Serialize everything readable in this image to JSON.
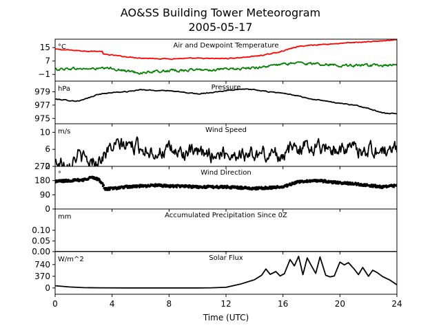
{
  "figure": {
    "title_line1": "AO&SS Building Tower Meteorogram",
    "title_line2": "2005-05-17",
    "xlabel": "Time (UTC)"
  },
  "chart_data": [
    {
      "type": "line",
      "title": "Air and Dewpoint Temperature",
      "unit": "°C",
      "ylim": [
        -5,
        20
      ],
      "yticks": [
        -1,
        7,
        15
      ],
      "xlim": [
        0,
        24
      ],
      "xticks": [
        0,
        4,
        8,
        12,
        16,
        20,
        24
      ],
      "grid": false,
      "series": [
        {
          "color": "#ff0000",
          "noise": 0.2,
          "points": [
            [
              0,
              14
            ],
            [
              1,
              13.5
            ],
            [
              2,
              13
            ],
            [
              3.3,
              12.7
            ],
            [
              3.4,
              11
            ],
            [
              4,
              10.5
            ],
            [
              5,
              9.5
            ],
            [
              6,
              8.8
            ],
            [
              7,
              8.5
            ],
            [
              8,
              8.3
            ],
            [
              9,
              8.5
            ],
            [
              10,
              8.6
            ],
            [
              11,
              8.4
            ],
            [
              12,
              8.5
            ],
            [
              13,
              9
            ],
            [
              14,
              9.8
            ],
            [
              15,
              11
            ],
            [
              16,
              13
            ],
            [
              17,
              15.5
            ],
            [
              18,
              16.5
            ],
            [
              19,
              17
            ],
            [
              20,
              17.5
            ],
            [
              21,
              18
            ],
            [
              22,
              18.5
            ],
            [
              23,
              19
            ],
            [
              24,
              19.5
            ]
          ]
        },
        {
          "color": "#008000",
          "noise": 0.6,
          "points": [
            [
              0,
              2
            ],
            [
              1,
              2.5
            ],
            [
              2,
              2.3
            ],
            [
              3,
              2.4
            ],
            [
              4,
              2.6
            ],
            [
              5,
              1
            ],
            [
              6,
              0
            ],
            [
              7,
              0.5
            ],
            [
              8,
              1.2
            ],
            [
              9,
              1.5
            ],
            [
              10,
              1.7
            ],
            [
              11,
              1.8
            ],
            [
              12,
              2
            ],
            [
              13,
              2.3
            ],
            [
              14,
              3
            ],
            [
              15,
              4
            ],
            [
              16,
              5
            ],
            [
              17,
              6
            ],
            [
              18,
              5.3
            ],
            [
              19,
              5
            ],
            [
              20,
              4.5
            ],
            [
              21,
              4.3
            ],
            [
              22,
              4.2
            ],
            [
              23,
              4.3
            ],
            [
              24,
              4.3
            ]
          ]
        }
      ]
    },
    {
      "type": "line",
      "title": "Pressure",
      "unit": "hPa",
      "ylim": [
        974.2,
        980.6
      ],
      "yticks": [
        975,
        977,
        979
      ],
      "xlim": [
        0,
        24
      ],
      "grid": false,
      "series": [
        {
          "color": "#000000",
          "noise": 0.05,
          "points": [
            [
              0,
              977.9
            ],
            [
              1,
              977.7
            ],
            [
              1.5,
              977.6
            ],
            [
              2,
              977.8
            ],
            [
              3,
              978.6
            ],
            [
              4,
              978.9
            ],
            [
              5,
              979.0
            ],
            [
              6,
              979.3
            ],
            [
              7,
              979.2
            ],
            [
              8,
              979.2
            ],
            [
              9,
              978.9
            ],
            [
              10,
              978.7
            ],
            [
              11,
              978.9
            ],
            [
              12,
              979.2
            ],
            [
              13,
              979.4
            ],
            [
              14,
              979.3
            ],
            [
              15,
              979.0
            ],
            [
              16,
              978.8
            ],
            [
              17,
              978.4
            ],
            [
              18,
              977.9
            ],
            [
              19,
              977.6
            ],
            [
              20,
              977.3
            ],
            [
              21,
              977.0
            ],
            [
              22,
              976.5
            ],
            [
              23,
              975.8
            ],
            [
              24,
              975.7
            ]
          ]
        }
      ]
    },
    {
      "type": "line",
      "title": "Wind Speed",
      "unit": "m/s",
      "ylim": [
        2,
        12
      ],
      "yticks": [
        2,
        6,
        10
      ],
      "xlim": [
        0,
        24
      ],
      "grid": false,
      "series": [
        {
          "color": "#000000",
          "noise": 1.4,
          "points": [
            [
              0,
              2.8
            ],
            [
              1,
              3.3
            ],
            [
              1.6,
              4.8
            ],
            [
              2,
              3.5
            ],
            [
              2.5,
              3
            ],
            [
              3,
              3.5
            ],
            [
              3.5,
              5
            ],
            [
              4,
              6.5
            ],
            [
              5,
              7
            ],
            [
              6,
              6.5
            ],
            [
              7,
              5.5
            ],
            [
              8,
              5.5
            ],
            [
              9,
              5.2
            ],
            [
              10,
              4.8
            ],
            [
              11,
              5
            ],
            [
              12,
              5
            ],
            [
              13,
              5
            ],
            [
              14,
              4.7
            ],
            [
              15,
              4.8
            ],
            [
              16,
              5
            ],
            [
              17,
              6.5
            ],
            [
              18,
              6.8
            ],
            [
              19,
              6.5
            ],
            [
              20,
              6.3
            ],
            [
              21,
              6
            ],
            [
              22,
              6
            ],
            [
              23,
              5.5
            ],
            [
              24,
              6
            ]
          ]
        }
      ]
    },
    {
      "type": "scatter",
      "title": "Wind Direction",
      "unit": "°",
      "ylim": [
        0,
        270
      ],
      "yticks": [
        0,
        90,
        180,
        270
      ],
      "xlim": [
        0,
        24
      ],
      "grid": false,
      "series": [
        {
          "color": "#000000",
          "noise": 8,
          "points": [
            [
              0,
              175
            ],
            [
              1,
              180
            ],
            [
              2,
              185
            ],
            [
              2.5,
              200
            ],
            [
              3,
              190
            ],
            [
              3.3,
              165
            ],
            [
              3.5,
              125
            ],
            [
              4,
              130
            ],
            [
              5,
              140
            ],
            [
              6,
              145
            ],
            [
              7,
              150
            ],
            [
              8,
              145
            ],
            [
              9,
              145
            ],
            [
              10,
              140
            ],
            [
              11,
              140
            ],
            [
              12,
              140
            ],
            [
              13,
              135
            ],
            [
              14,
              130
            ],
            [
              15,
              135
            ],
            [
              16,
              140
            ],
            [
              17,
              170
            ],
            [
              18,
              180
            ],
            [
              19,
              175
            ],
            [
              20,
              165
            ],
            [
              21,
              160
            ],
            [
              22,
              150
            ],
            [
              23,
              140
            ],
            [
              24,
              148
            ]
          ]
        }
      ]
    },
    {
      "type": "line",
      "title": "Accumulated Precipitation Since 0Z",
      "unit": "mm",
      "ylim": [
        0,
        0.2
      ],
      "yticks": [
        0.0,
        0.05,
        0.1
      ],
      "ytick_labels": [
        "0.00",
        "0.05",
        "0.10"
      ],
      "xlim": [
        0,
        24
      ],
      "grid": false,
      "series": [
        {
          "color": "#000000",
          "noise": 0,
          "points": [
            [
              0,
              0
            ],
            [
              24,
              0
            ]
          ]
        }
      ]
    },
    {
      "type": "line",
      "title": "Solar Flux",
      "unit": "W/m^2",
      "ylim": [
        -200,
        1150
      ],
      "yticks": [
        0,
        370,
        740
      ],
      "xlim": [
        0,
        24
      ],
      "grid": false,
      "series": [
        {
          "color": "#000000",
          "noise": 0,
          "points": [
            [
              0,
              70
            ],
            [
              1,
              30
            ],
            [
              2,
              10
            ],
            [
              3,
              5
            ],
            [
              5,
              0
            ],
            [
              8,
              0
            ],
            [
              10,
              0
            ],
            [
              11,
              5
            ],
            [
              12,
              20
            ],
            [
              13,
              120
            ],
            [
              14,
              260
            ],
            [
              14.5,
              400
            ],
            [
              14.8,
              600
            ],
            [
              15.1,
              430
            ],
            [
              15.5,
              520
            ],
            [
              15.8,
              380
            ],
            [
              16.1,
              450
            ],
            [
              16.5,
              900
            ],
            [
              16.8,
              700
            ],
            [
              17.1,
              1000
            ],
            [
              17.4,
              420
            ],
            [
              17.7,
              950
            ],
            [
              18,
              700
            ],
            [
              18.3,
              460
            ],
            [
              18.6,
              980
            ],
            [
              19,
              400
            ],
            [
              19.3,
              350
            ],
            [
              19.6,
              380
            ],
            [
              20,
              820
            ],
            [
              20.3,
              730
            ],
            [
              20.6,
              800
            ],
            [
              21,
              600
            ],
            [
              21.3,
              420
            ],
            [
              21.6,
              650
            ],
            [
              22,
              370
            ],
            [
              22.3,
              560
            ],
            [
              22.6,
              490
            ],
            [
              23,
              360
            ],
            [
              23.5,
              250
            ],
            [
              24,
              100
            ]
          ]
        }
      ]
    }
  ]
}
